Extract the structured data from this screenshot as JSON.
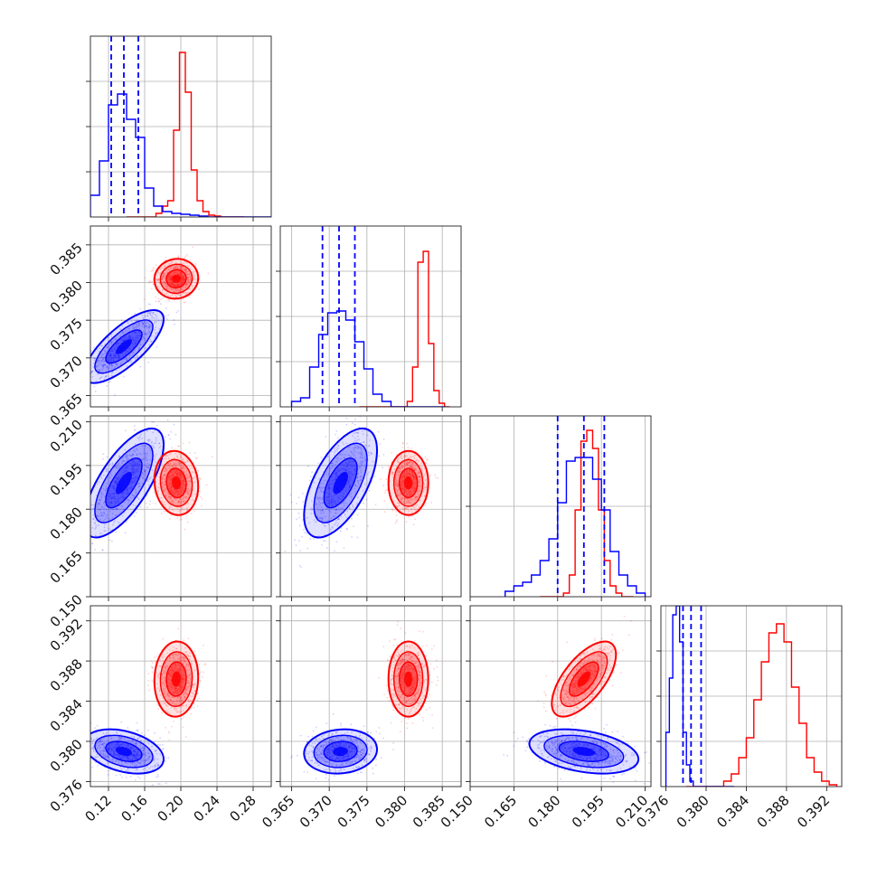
{
  "chart_data": {
    "type": "corner",
    "colors": {
      "series_a": "#0000ff",
      "series_b": "#ff0000"
    },
    "grid": true,
    "legend": "none",
    "series": [
      {
        "color_key": "series_a",
        "means": [
          0.137,
          0.3715,
          0.189,
          0.379
        ],
        "sigmas": [
          0.02,
          0.0022,
          0.0085,
          0.001
        ],
        "quantile_lines": [
          [
            0.123,
            0.137,
            0.153
          ],
          [
            0.3691,
            0.3713,
            0.3734
          ],
          [
            0.18,
            0.189,
            0.196
          ],
          [
            0.3777,
            0.3785,
            0.3795
          ]
        ]
      },
      {
        "color_key": "series_b",
        "means": [
          0.195,
          0.3805,
          0.189,
          0.3862
        ],
        "sigmas": [
          0.011,
          0.0012,
          0.005,
          0.0017
        ]
      }
    ],
    "panels": [
      {
        "name": "hist-0",
        "xlim": [
          0.1,
          0.3
        ],
        "ylim": [
          0,
          1
        ],
        "x_ticks": [
          0.12,
          0.16,
          0.2,
          0.24,
          0.28
        ],
        "y_ticks": [
          0.25,
          0.5,
          0.75
        ],
        "hist_edges": [
          0.1,
          0.11,
          0.12,
          0.13,
          0.14,
          0.15,
          0.16,
          0.17,
          0.18,
          0.19,
          0.2,
          0.21,
          0.22,
          0.23,
          0.24,
          0.25,
          0.26,
          0.27,
          0.28,
          0.29,
          0.3
        ],
        "hist_a": [
          0.12,
          0.31,
          0.62,
          0.68,
          0.54,
          0.44,
          0.16,
          0.06,
          0.03,
          0.02,
          0.015,
          0.01,
          0.005,
          0,
          0,
          0,
          0,
          0,
          0,
          0
        ],
        "hist_b": [
          0,
          0,
          0,
          0,
          0,
          0.02,
          0.06,
          0.09,
          0.48,
          0.91,
          0.69,
          0.26,
          0.09,
          0.03,
          0.01,
          0.005,
          0,
          0,
          0,
          0
        ],
        "hist_b_xrange": [
          0.14,
          0.27
        ]
      },
      {
        "name": "hist-1",
        "xlim": [
          0.3635,
          0.3875
        ],
        "ylim": [
          0,
          1
        ],
        "x_ticks": [
          0.365,
          0.37,
          0.375,
          0.38,
          0.385
        ],
        "y_ticks": [
          0.25,
          0.5,
          0.75
        ],
        "hist_edges": [
          0.365,
          0.3662,
          0.3674,
          0.3686,
          0.3698,
          0.371,
          0.3722,
          0.3734,
          0.3746,
          0.3758,
          0.377,
          0.3782,
          0.3794,
          0.3806,
          0.3818,
          0.383,
          0.3842,
          0.3854
        ],
        "hist_a": [
          0.03,
          0.05,
          0.22,
          0.4,
          0.52,
          0.53,
          0.48,
          0.36,
          0.21,
          0.07,
          0.03,
          0,
          0,
          0,
          0,
          0,
          0
        ],
        "hist_b": [
          0,
          0,
          0,
          0,
          0,
          0,
          0,
          0,
          0,
          0.03,
          0.22,
          0.8,
          0.86,
          0.35,
          0.09,
          0.02,
          0
        ],
        "hist_b_xrange": [
          0.374,
          0.386
        ]
      },
      {
        "name": "hist-2",
        "xlim": [
          0.15,
          0.212
        ],
        "ylim": [
          0,
          1
        ],
        "x_ticks": [
          0.15,
          0.165,
          0.18,
          0.195,
          0.21
        ],
        "y_ticks": [
          0.5
        ],
        "hist_edges": [
          0.162,
          0.165,
          0.168,
          0.171,
          0.174,
          0.177,
          0.18,
          0.183,
          0.186,
          0.189,
          0.192,
          0.195,
          0.198,
          0.201,
          0.204,
          0.207,
          0.21
        ],
        "hist_a": [
          0.03,
          0.06,
          0.08,
          0.12,
          0.2,
          0.32,
          0.52,
          0.75,
          0.77,
          0.77,
          0.65,
          0.48,
          0.25,
          0.12,
          0.06,
          0.02
        ],
        "hist_b": [
          0,
          0,
          0,
          0,
          0.02,
          0.12,
          0.48,
          0.86,
          0.92,
          0.82,
          0.48,
          0.2,
          0.06,
          0.02,
          0,
          0
        ],
        "hist_b_xrange": [
          0.174,
          0.206
        ]
      },
      {
        "name": "hist-3",
        "xlim": [
          0.3755,
          0.3935
        ],
        "ylim": [
          0,
          1
        ],
        "x_ticks": [
          0.376,
          0.38,
          0.384,
          0.388,
          0.392
        ],
        "y_ticks": [
          0.25,
          0.5,
          0.75
        ],
        "hist_edges": [
          0.376,
          0.3768,
          0.3776,
          0.3784,
          0.3792,
          0.38,
          0.3808,
          0.3816,
          0.3824,
          0.3832,
          0.384,
          0.3848,
          0.3856,
          0.3864,
          0.3872,
          0.388,
          0.3888,
          0.3896,
          0.3904,
          0.3912,
          0.392
        ],
        "hist_a": [
          0.3,
          0.6,
          0.95,
          1.0,
          0.8,
          0.3,
          0.12,
          0.03,
          0,
          0,
          0,
          0,
          0,
          0,
          0,
          0,
          0,
          0,
          0,
          0
        ],
        "hist_a_xrange": [
          0.376,
          0.3828
        ],
        "hist_b": [
          0,
          0,
          0,
          0,
          0,
          0.03,
          0.07,
          0.16,
          0.27,
          0.48,
          0.69,
          0.85,
          0.9,
          0.8,
          0.55,
          0.35,
          0.16,
          0.08,
          0.03,
          0.01
        ],
        "hist_b_xrange": [
          0.378,
          0.393
        ]
      }
    ],
    "pair_panels": [
      {
        "name": "pair-1-0",
        "x_var": 0,
        "y_var": 1,
        "xlim": [
          0.1,
          0.3
        ],
        "ylim": [
          0.3635,
          0.3875
        ],
        "y_ticks": [
          0.365,
          0.37,
          0.375,
          0.38,
          0.385
        ],
        "rho_a": 0.75,
        "rho_b": 0.05
      },
      {
        "name": "pair-2-0",
        "x_var": 0,
        "y_var": 2,
        "xlim": [
          0.1,
          0.3
        ],
        "ylim": [
          0.15,
          0.212
        ],
        "y_ticks": [
          0.15,
          0.165,
          0.18,
          0.195,
          0.21
        ],
        "rho_a": 0.7,
        "rho_b": -0.1
      },
      {
        "name": "pair-2-1",
        "x_var": 1,
        "y_var": 2,
        "xlim": [
          0.3635,
          0.3875
        ],
        "ylim": [
          0.15,
          0.212
        ],
        "rho_a": 0.6,
        "rho_b": 0.0
      },
      {
        "name": "pair-3-0",
        "x_var": 0,
        "y_var": 3,
        "xlim": [
          0.1,
          0.3
        ],
        "ylim": [
          0.3755,
          0.3935
        ],
        "y_ticks": [
          0.376,
          0.38,
          0.384,
          0.388,
          0.392
        ],
        "rho_a": -0.35,
        "rho_b": 0.05
      },
      {
        "name": "pair-3-1",
        "x_var": 1,
        "y_var": 3,
        "xlim": [
          0.3635,
          0.3875
        ],
        "ylim": [
          0.3755,
          0.3935
        ],
        "rho_a": 0.1,
        "rho_b": 0.0
      },
      {
        "name": "pair-3-2",
        "x_var": 2,
        "y_var": 3,
        "xlim": [
          0.15,
          0.212
        ],
        "ylim": [
          0.3755,
          0.3935
        ],
        "rho_a": -0.35,
        "rho_b": 0.65
      }
    ]
  }
}
